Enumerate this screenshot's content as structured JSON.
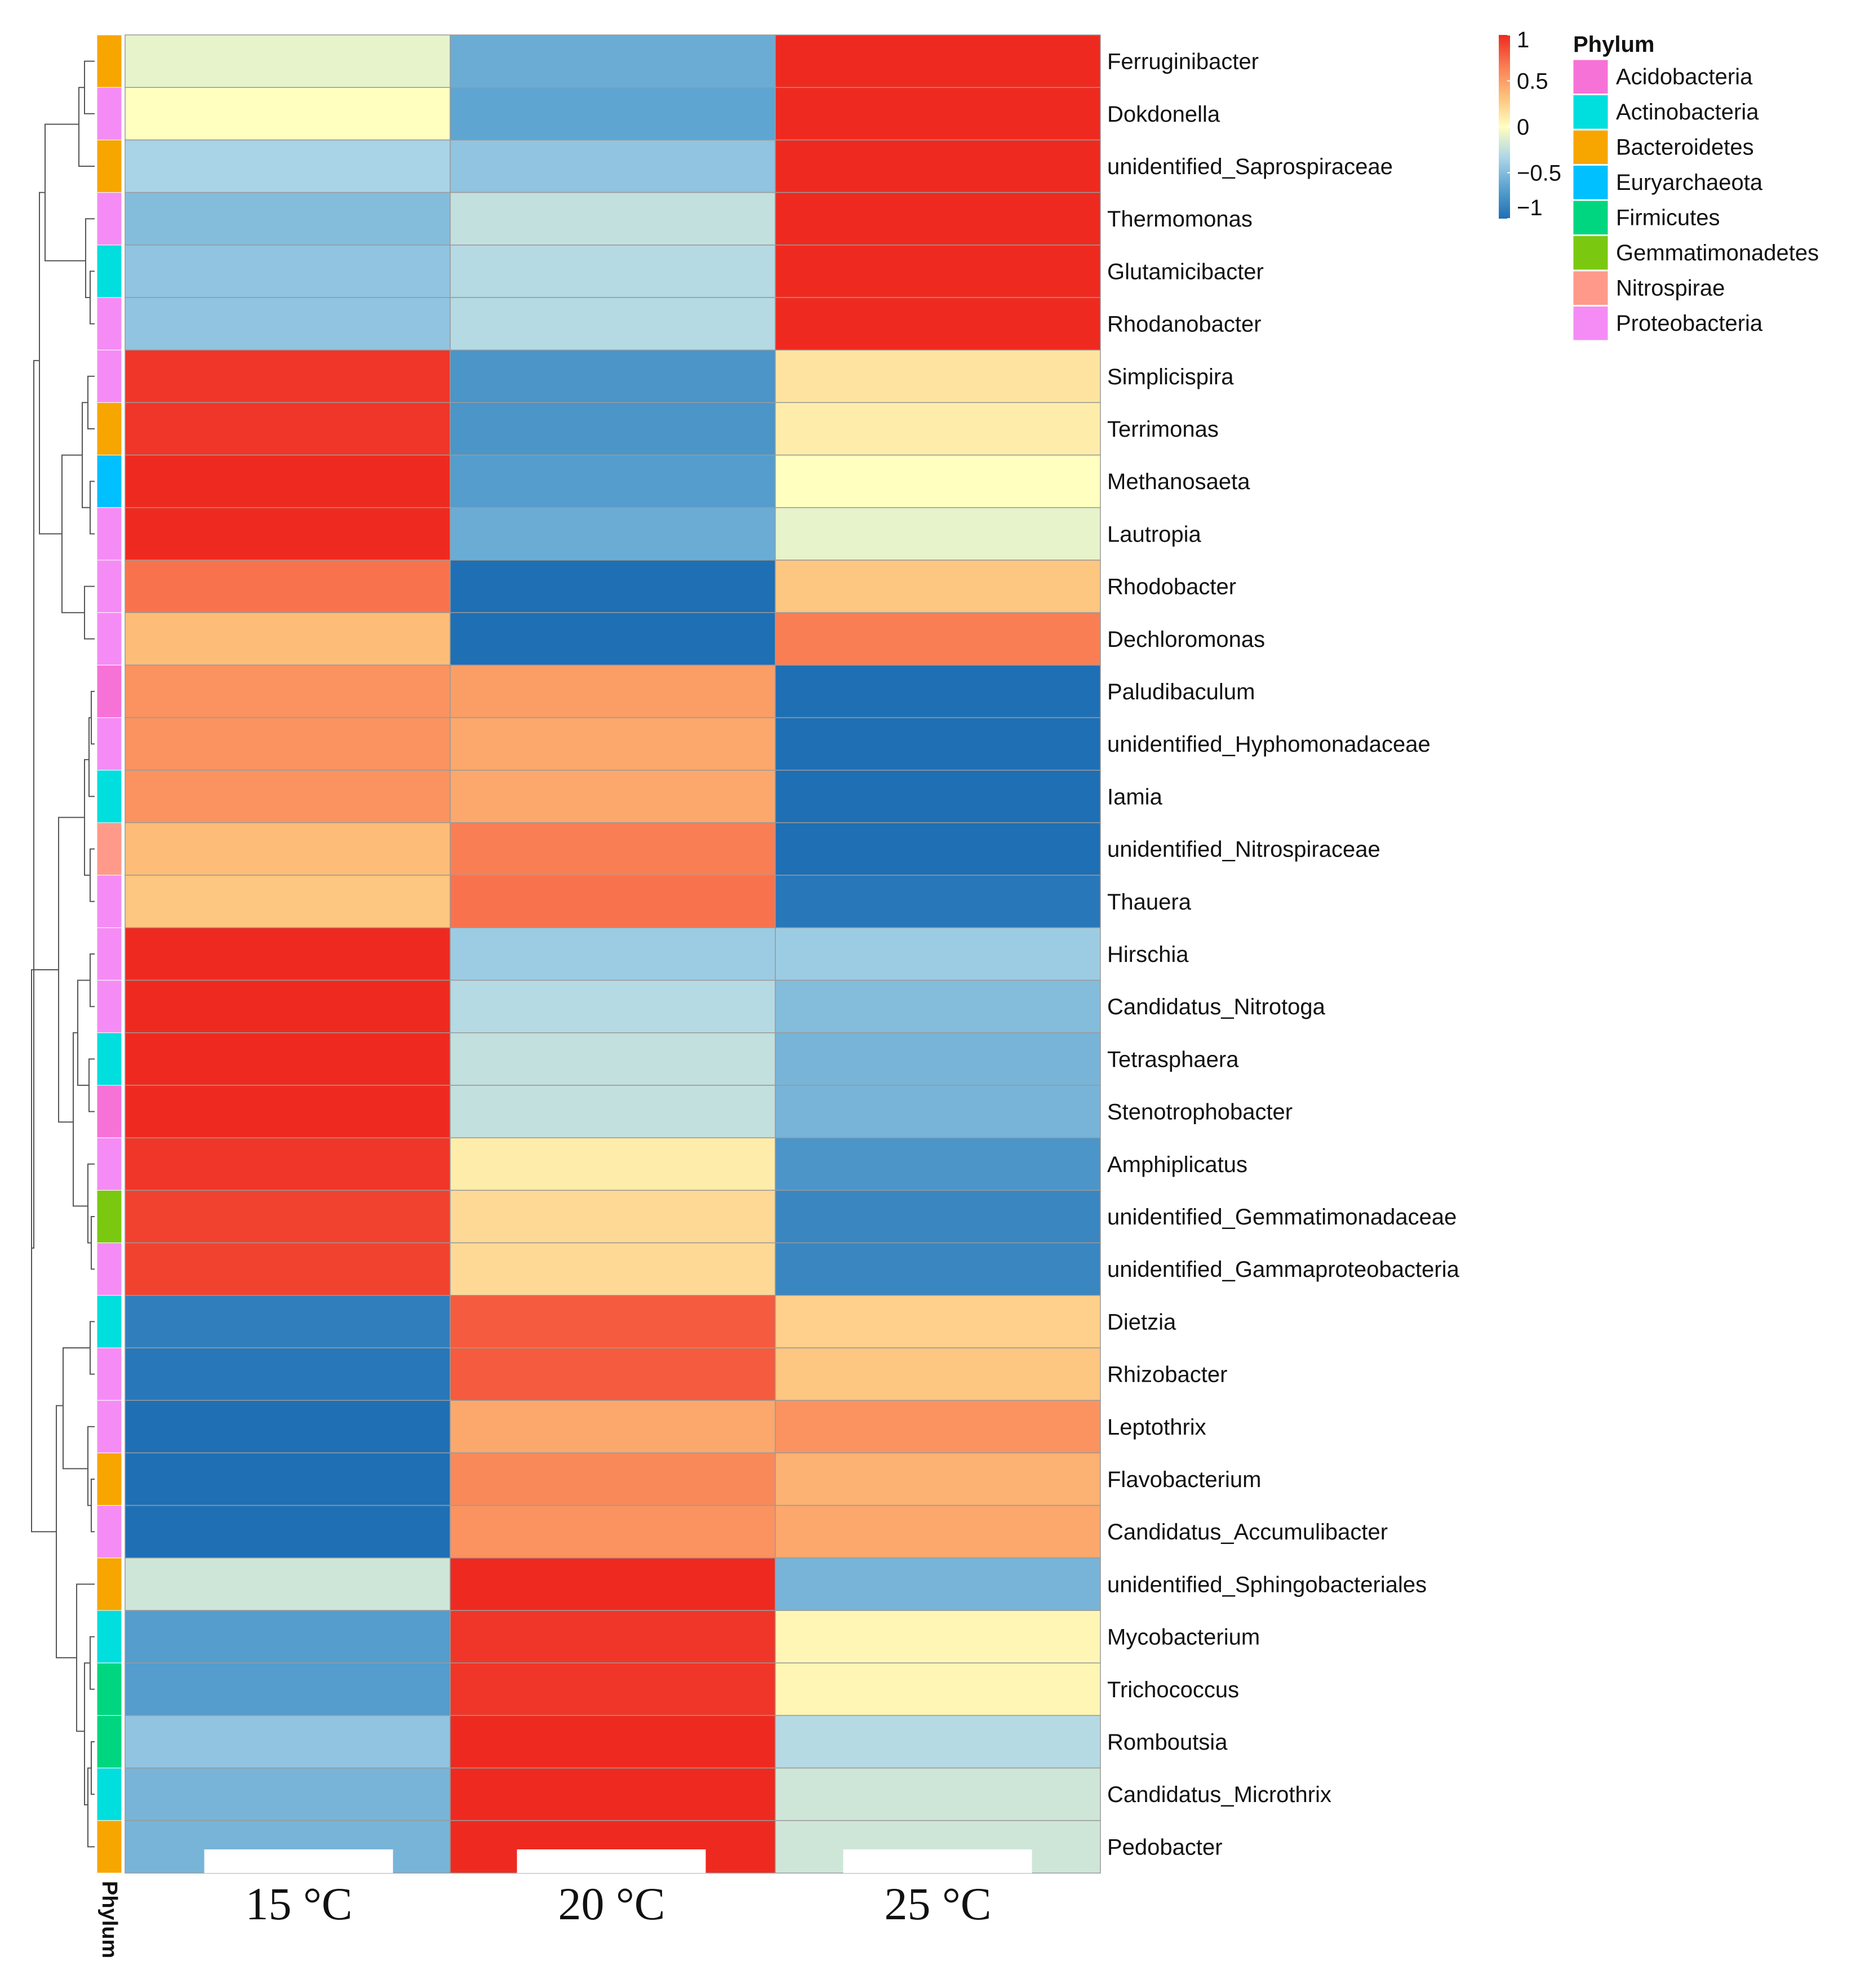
{
  "chart_data": {
    "type": "heatmap",
    "columns": [
      "15 °C",
      "20 °C",
      "25 °C"
    ],
    "rows": [
      "Ferruginibacter",
      "Dokdonella",
      "unidentified_Saprospiraceae",
      "Thermomonas",
      "Glutamicibacter",
      "Rhodanobacter",
      "Simplicispira",
      "Terrimonas",
      "Methanosaeta",
      "Lautropia",
      "Rhodobacter",
      "Dechloromonas",
      "Paludibaculum",
      "unidentified_Hyphomonadaceae",
      "Iamia",
      "unidentified_Nitrospiraceae",
      "Thauera",
      "Hirschia",
      "Candidatus_Nitrotoga",
      "Tetrasphaera",
      "Stenotrophobacter",
      "Amphiplicatus",
      "unidentified_Gemmatimonadaceae",
      "unidentified_Gammaproteobacteria",
      "Dietzia",
      "Rhizobacter",
      "Leptothrix",
      "Flavobacterium",
      "Candidatus_Accumulibacter",
      "unidentified_Sphingobacteriales",
      "Mycobacterium",
      "Trichococcus",
      "Romboutsia",
      "Candidatus_Microthrix",
      "Pedobacter"
    ],
    "values": [
      [
        -0.1,
        -0.6,
        1.0
      ],
      [
        0.0,
        -0.65,
        1.0
      ],
      [
        -0.35,
        -0.45,
        1.0
      ],
      [
        -0.5,
        -0.25,
        1.0
      ],
      [
        -0.45,
        -0.3,
        1.0
      ],
      [
        -0.45,
        -0.3,
        1.0
      ],
      [
        0.95,
        -0.75,
        0.15
      ],
      [
        0.95,
        -0.75,
        0.1
      ],
      [
        1.0,
        -0.7,
        0.0
      ],
      [
        1.0,
        -0.6,
        -0.1
      ],
      [
        0.7,
        -1.0,
        0.3
      ],
      [
        0.35,
        -1.0,
        0.65
      ],
      [
        0.55,
        0.5,
        -1.0
      ],
      [
        0.55,
        0.45,
        -1.0
      ],
      [
        0.55,
        0.45,
        -1.0
      ],
      [
        0.35,
        0.65,
        -1.0
      ],
      [
        0.3,
        0.7,
        -0.95
      ],
      [
        1.0,
        -0.4,
        -0.4
      ],
      [
        1.0,
        -0.3,
        -0.5
      ],
      [
        1.0,
        -0.25,
        -0.55
      ],
      [
        1.0,
        -0.25,
        -0.55
      ],
      [
        0.95,
        0.1,
        -0.75
      ],
      [
        0.9,
        0.2,
        -0.85
      ],
      [
        0.9,
        0.2,
        -0.85
      ],
      [
        -0.9,
        0.8,
        0.25
      ],
      [
        -0.95,
        0.8,
        0.3
      ],
      [
        -1.0,
        0.45,
        0.55
      ],
      [
        -1.0,
        0.6,
        0.4
      ],
      [
        -1.0,
        0.55,
        0.45
      ],
      [
        -0.2,
        1.0,
        -0.55
      ],
      [
        -0.7,
        0.95,
        0.05
      ],
      [
        -0.7,
        0.95,
        0.05
      ],
      [
        -0.45,
        1.0,
        -0.3
      ],
      [
        -0.55,
        1.0,
        -0.2
      ],
      [
        -0.55,
        1.0,
        -0.2
      ]
    ],
    "row_phylum": [
      "Bacteroidetes",
      "Proteobacteria",
      "Bacteroidetes",
      "Proteobacteria",
      "Actinobacteria",
      "Proteobacteria",
      "Proteobacteria",
      "Bacteroidetes",
      "Euryarchaeota",
      "Proteobacteria",
      "Proteobacteria",
      "Proteobacteria",
      "Acidobacteria",
      "Proteobacteria",
      "Actinobacteria",
      "Nitrospirae",
      "Proteobacteria",
      "Proteobacteria",
      "Proteobacteria",
      "Actinobacteria",
      "Acidobacteria",
      "Proteobacteria",
      "Gemmatimonadetes",
      "Proteobacteria",
      "Actinobacteria",
      "Proteobacteria",
      "Proteobacteria",
      "Bacteroidetes",
      "Proteobacteria",
      "Bacteroidetes",
      "Actinobacteria",
      "Firmicutes",
      "Firmicutes",
      "Actinobacteria",
      "Bacteroidetes"
    ],
    "color_scale": {
      "min": -1,
      "max": 1,
      "ticks": [
        {
          "value": 1,
          "label": "1"
        },
        {
          "value": 0.5,
          "label": "0.5"
        },
        {
          "value": 0,
          "label": "0"
        },
        {
          "value": -0.5,
          "label": "−0.5"
        },
        {
          "value": -1,
          "label": "−1"
        }
      ],
      "stops": [
        "#1f6fb4",
        "#5aa2d0",
        "#add6e8",
        "#ffffbf",
        "#fdc07a",
        "#f97b52",
        "#ee2a20"
      ]
    },
    "annotation_label": "Phylum",
    "legend": {
      "title": "Phylum",
      "entries": [
        {
          "name": "Acidobacteria",
          "color": "#f772d6"
        },
        {
          "name": "Actinobacteria",
          "color": "#00dede"
        },
        {
          "name": "Bacteroidetes",
          "color": "#f7a600"
        },
        {
          "name": "Euryarchaeota",
          "color": "#00c0ff"
        },
        {
          "name": "Firmicutes",
          "color": "#00d680"
        },
        {
          "name": "Gemmatimonadetes",
          "color": "#7bc810"
        },
        {
          "name": "Nitrospirae",
          "color": "#ff9a8a"
        },
        {
          "name": "Proteobacteria",
          "color": "#f58cf5"
        }
      ]
    },
    "title": "",
    "xlabel": "",
    "ylabel": ""
  }
}
